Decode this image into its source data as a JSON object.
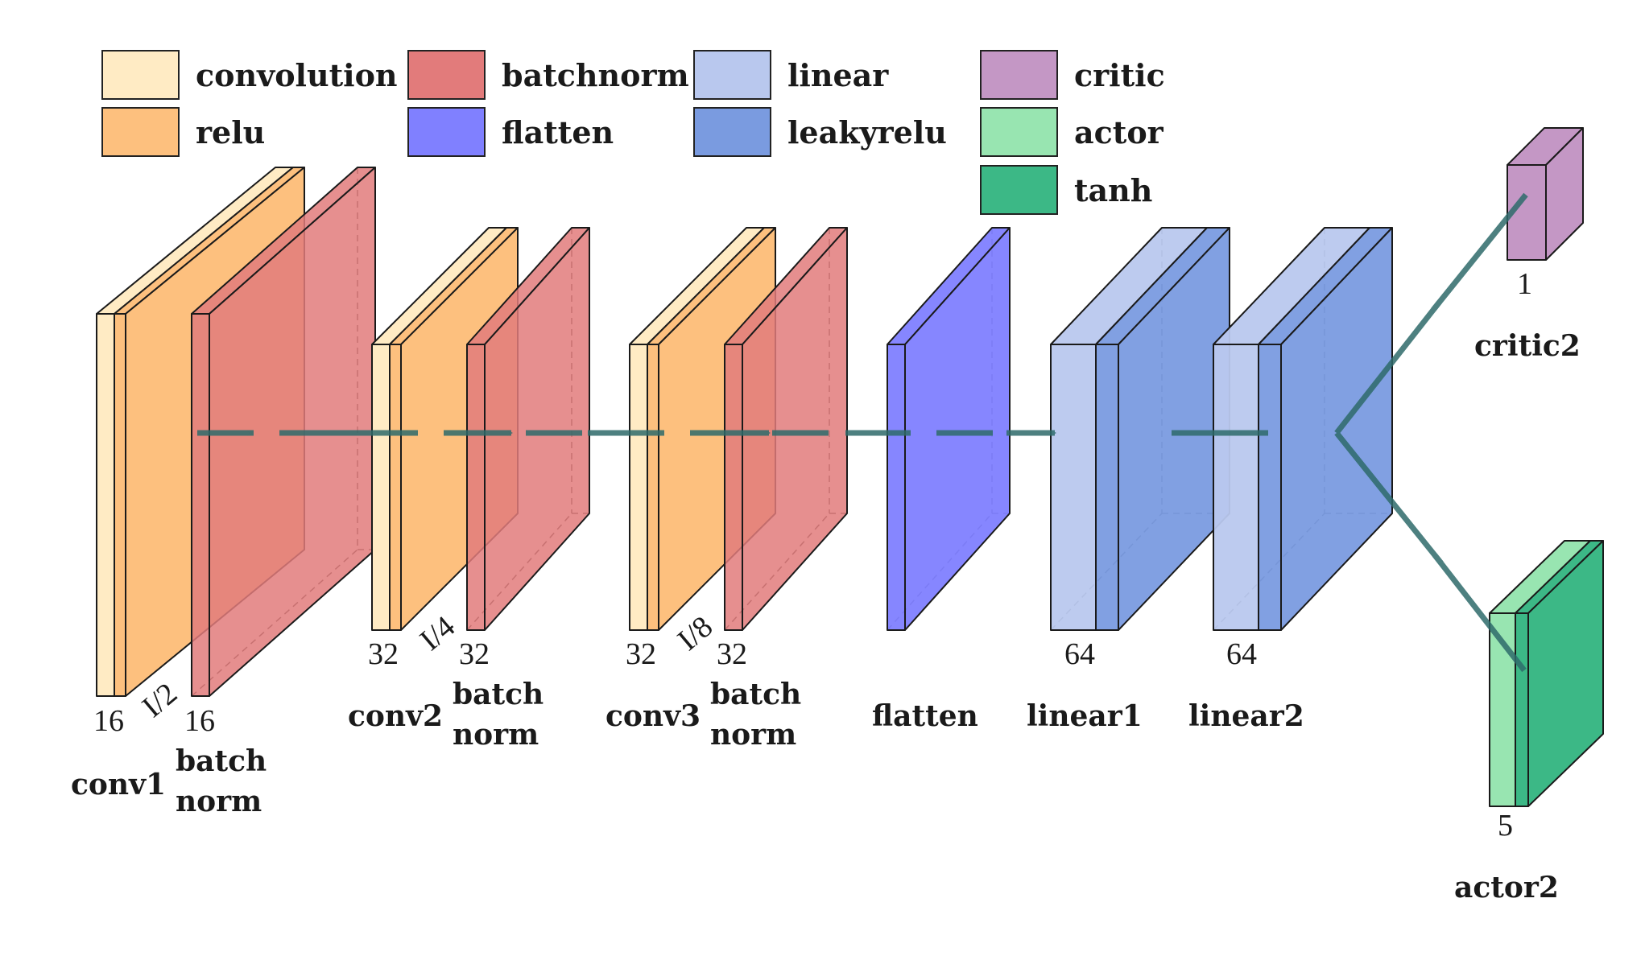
{
  "legend": [
    {
      "label": "convolution",
      "color": "#FFEBC4"
    },
    {
      "label": "relu",
      "color": "#FDC07E"
    },
    {
      "label": "batchnorm",
      "color": "#E27B7B"
    },
    {
      "label": "flatten",
      "color": "#8080FF"
    },
    {
      "label": "linear",
      "color": "#B9C8EE"
    },
    {
      "label": "leakyrelu",
      "color": "#7A9BE0"
    },
    {
      "label": "critic",
      "color": "#C497C5"
    },
    {
      "label": "actor",
      "color": "#98E5B1"
    },
    {
      "label": "tanh",
      "color": "#3CB886"
    }
  ],
  "layers": {
    "conv1": {
      "name": "conv1",
      "channels": "16"
    },
    "bn1": {
      "name_line1": "batch",
      "name_line2": "norm",
      "channels": "16"
    },
    "conv2": {
      "name": "conv2",
      "channels": "32"
    },
    "bn2": {
      "name_line1": "batch",
      "name_line2": "norm",
      "channels": "32"
    },
    "conv3": {
      "name": "conv3",
      "channels": "32"
    },
    "bn3": {
      "name_line1": "batch",
      "name_line2": "norm",
      "channels": "32"
    },
    "flatten": {
      "name": "flatten"
    },
    "linear1": {
      "name": "linear1",
      "channels": "64"
    },
    "linear2": {
      "name": "linear2",
      "channels": "64"
    },
    "critic2": {
      "name": "critic2",
      "channels": "1"
    },
    "actor2": {
      "name": "actor2",
      "channels": "5"
    }
  },
  "scales": [
    "I/2",
    "I/4",
    "I/8"
  ],
  "edge_color": "#2E6B6B"
}
